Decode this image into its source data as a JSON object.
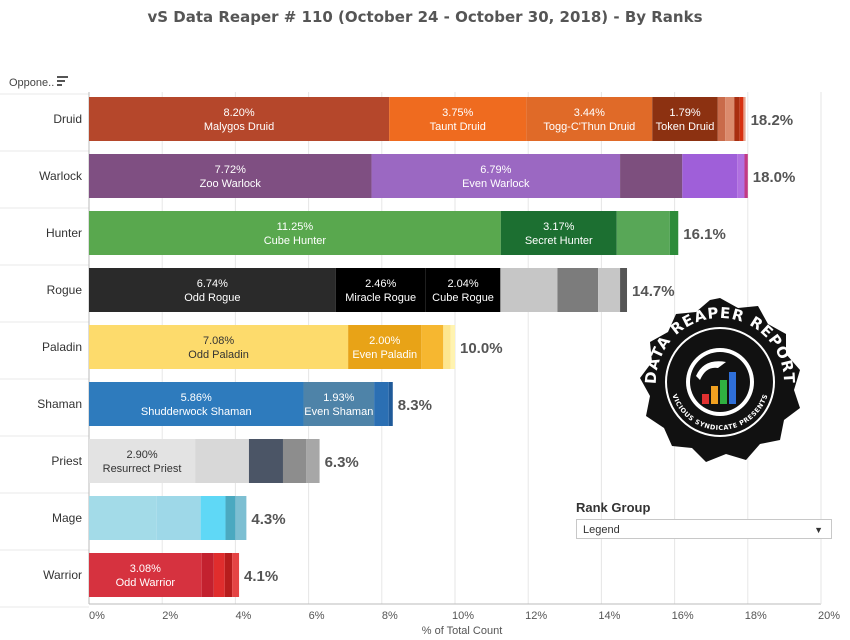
{
  "title": "vS Data Reaper #  110 (October 24 - October 30, 2018) - By Ranks",
  "opponent_header": "Oppone..",
  "rank_group": {
    "title": "Rank Group",
    "selected": "Legend"
  },
  "logo": {
    "text_top": "DATA REAPER REPORT",
    "text_bottom": "VICIOUS SYNDICATE PRESENTS"
  },
  "colors": {
    "druid": [
      "#b5472b",
      "#ef6b1f",
      "#e06a28",
      "#8c3111",
      "#c96b4a",
      "#db8b6d",
      "#a82e10",
      "#d73010",
      "#e6a58e"
    ],
    "warlock": [
      "#7f4f82",
      "#9b68c2",
      "#7d4f7e",
      "#9f5fd9",
      "#b070e0",
      "#c23a84"
    ],
    "hunter": [
      "#59a84e",
      "#1c6f31",
      "#58a757",
      "#2d8c3a"
    ],
    "rogue": [
      "#2a2a2a",
      "#000000",
      "#000000",
      "#c6c6c6",
      "#7c7c7c",
      "#c6c6c6",
      "#555555"
    ],
    "paladin": [
      "#fddb6c",
      "#e8a317",
      "#f6b730",
      "#fde68f",
      "#fff3b0"
    ],
    "shaman": [
      "#2e7bbd",
      "#4e83a8",
      "#2b6fb3",
      "#1f5a99"
    ],
    "priest": [
      "#e3e3e3",
      "#d8d8d8",
      "#4b5566",
      "#8d8d8d",
      "#a7a7a7"
    ],
    "mage": [
      "#a3dbe8",
      "#9ed8e8",
      "#5fd8f6",
      "#4ba9c0",
      "#7dbfd2"
    ],
    "warrior": [
      "#d6323f",
      "#c3212f",
      "#e02d2d",
      "#b71d1d",
      "#e54444"
    ]
  },
  "chart_data": {
    "type": "bar",
    "orientation": "horizontal",
    "stacked": true,
    "xlabel": "% of Total Count",
    "xlim": [
      0,
      20
    ],
    "xticks": [
      "0%",
      "2%",
      "4%",
      "6%",
      "8%",
      "10%",
      "12%",
      "14%",
      "16%",
      "18%",
      "20%"
    ],
    "xtick_values": [
      0,
      2,
      4,
      6,
      8,
      10,
      12,
      14,
      16,
      18,
      20
    ],
    "grid": true,
    "categories": [
      "Druid",
      "Warlock",
      "Hunter",
      "Rogue",
      "Paladin",
      "Shaman",
      "Priest",
      "Mage",
      "Warrior"
    ],
    "totals": [
      18.2,
      18.0,
      16.1,
      14.7,
      10.0,
      8.3,
      6.3,
      4.3,
      4.1
    ],
    "total_labels": [
      "18.2%",
      "18.0%",
      "16.1%",
      "14.7%",
      "10.0%",
      "8.3%",
      "6.3%",
      "4.3%",
      "4.1%"
    ],
    "rows": [
      {
        "class": "Druid",
        "segments": [
          {
            "value": 8.2,
            "pct": "8.20%",
            "label": "Malygos Druid"
          },
          {
            "value": 3.75,
            "pct": "3.75%",
            "label": "Taunt Druid"
          },
          {
            "value": 3.44,
            "pct": "3.44%",
            "label": "Togg-C'Thun Druid"
          },
          {
            "value": 1.79,
            "pct": "1.79%",
            "label": "Token Druid"
          },
          {
            "value": 0.2
          },
          {
            "value": 0.25
          },
          {
            "value": 0.15
          },
          {
            "value": 0.1
          },
          {
            "value": 0.06
          }
        ]
      },
      {
        "class": "Warlock",
        "segments": [
          {
            "value": 7.72,
            "pct": "7.72%",
            "label": "Zoo Warlock"
          },
          {
            "value": 6.79,
            "pct": "6.79%",
            "label": "Even Warlock"
          },
          {
            "value": 1.7
          },
          {
            "value": 1.5
          },
          {
            "value": 0.2
          },
          {
            "value": 0.09
          }
        ]
      },
      {
        "class": "Hunter",
        "segments": [
          {
            "value": 11.25,
            "pct": "11.25%",
            "label": "Cube Hunter"
          },
          {
            "value": 3.17,
            "pct": "3.17%",
            "label": "Secret Hunter"
          },
          {
            "value": 1.45
          },
          {
            "value": 0.23
          }
        ]
      },
      {
        "class": "Rogue",
        "segments": [
          {
            "value": 6.74,
            "pct": "6.74%",
            "label": "Odd Rogue"
          },
          {
            "value": 2.46,
            "pct": "2.46%",
            "label": "Miracle Rogue"
          },
          {
            "value": 2.04,
            "pct": "2.04%",
            "label": "Cube Rogue"
          },
          {
            "value": 1.56
          },
          {
            "value": 1.11
          },
          {
            "value": 0.6
          },
          {
            "value": 0.19
          }
        ]
      },
      {
        "class": "Paladin",
        "segments": [
          {
            "value": 7.08,
            "pct": "7.08%",
            "label": "Odd Paladin"
          },
          {
            "value": 2.0,
            "pct": "2.00%",
            "label": "Even Paladin"
          },
          {
            "value": 0.6
          },
          {
            "value": 0.2
          },
          {
            "value": 0.12
          }
        ]
      },
      {
        "class": "Shaman",
        "segments": [
          {
            "value": 5.86,
            "pct": "5.86%",
            "label": "Shudderwock Shaman"
          },
          {
            "value": 1.93,
            "pct": "1.93%",
            "label": "Even Shaman"
          },
          {
            "value": 0.4
          },
          {
            "value": 0.11
          }
        ]
      },
      {
        "class": "Priest",
        "segments": [
          {
            "value": 2.9,
            "pct": "2.90%",
            "label": "Resurrect Priest"
          },
          {
            "value": 1.47
          },
          {
            "value": 0.93
          },
          {
            "value": 0.63
          },
          {
            "value": 0.37
          }
        ]
      },
      {
        "class": "Mage",
        "segments": [
          {
            "value": 1.85
          },
          {
            "value": 1.2
          },
          {
            "value": 0.68
          },
          {
            "value": 0.27
          },
          {
            "value": 0.3
          }
        ]
      },
      {
        "class": "Warrior",
        "segments": [
          {
            "value": 3.08,
            "pct": "3.08%",
            "label": "Odd Warrior"
          },
          {
            "value": 0.33
          },
          {
            "value": 0.3
          },
          {
            "value": 0.2
          },
          {
            "value": 0.19
          }
        ]
      }
    ]
  }
}
